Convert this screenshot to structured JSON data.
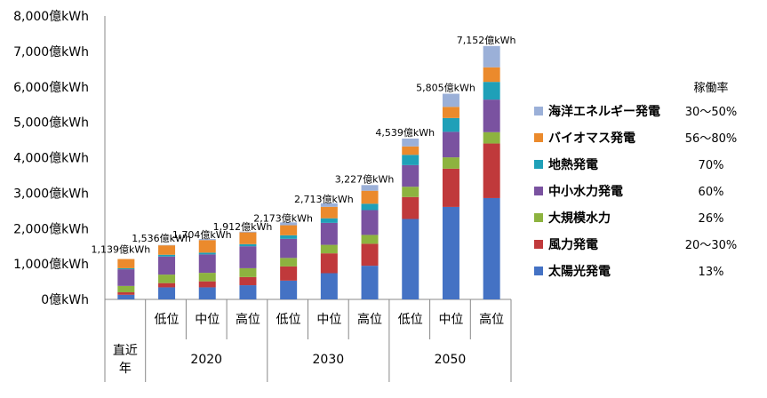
{
  "chart_data": {
    "type": "bar",
    "stacked": true,
    "title": "",
    "xlabel": "",
    "ylabel": "",
    "ylim": [
      0,
      8000
    ],
    "y_ticks": [
      "0億kWh",
      "1,000億kWh",
      "2,000億kWh",
      "3,000億kWh",
      "4,000億kWh",
      "5,000億kWh",
      "6,000億kWh",
      "7,000億kWh",
      "8,000億kWh"
    ],
    "categories": [
      "直近年",
      "2020 低位",
      "2020 中位",
      "2020 高位",
      "2030 低位",
      "2030 中位",
      "2030 高位",
      "2050 低位",
      "2050 中位",
      "2050 高位"
    ],
    "x_labels": [
      "",
      "低位",
      "中位",
      "高位",
      "低位",
      "中位",
      "高位",
      "低位",
      "中位",
      "高位"
    ],
    "groups": [
      {
        "label": "直近\n年",
        "start": 0,
        "end": 0
      },
      {
        "label": "2020",
        "start": 1,
        "end": 3
      },
      {
        "label": "2030",
        "start": 4,
        "end": 6
      },
      {
        "label": "2050",
        "start": 7,
        "end": 9
      }
    ],
    "totals": [
      "1,139億kWh",
      "1,536億kWh",
      "1,704億kWh",
      "1,912億kWh",
      "2,173億kWh",
      "2,713億kWh",
      "3,227億kWh",
      "4,539億kWh",
      "5,805億kWh",
      "7,152億kWh"
    ],
    "total_values": [
      1139,
      1536,
      1704,
      1912,
      2173,
      2713,
      3227,
      4539,
      5805,
      7152
    ],
    "series": [
      {
        "name": "太陽光発電",
        "rate": "13%",
        "color": "#4472C4",
        "values": [
          130,
          340,
          340,
          400,
          530,
          740,
          950,
          2270,
          2610,
          2860
        ]
      },
      {
        "name": "風力発電",
        "rate": "20～30%",
        "color": "#C0393B",
        "values": [
          70,
          120,
          170,
          230,
          400,
          560,
          620,
          620,
          1080,
          1540
        ]
      },
      {
        "name": "大規模水力",
        "rate": "26%",
        "color": "#8DB33F",
        "values": [
          180,
          240,
          240,
          250,
          240,
          240,
          250,
          290,
          320,
          320
        ]
      },
      {
        "name": "中小水力発電",
        "rate": "60%",
        "color": "#7A52A0",
        "values": [
          470,
          510,
          520,
          620,
          540,
          620,
          700,
          610,
          720,
          920
        ]
      },
      {
        "name": "地熱発電",
        "rate": "70%",
        "color": "#1FA0B8",
        "values": [
          30,
          50,
          50,
          60,
          100,
          130,
          180,
          290,
          390,
          500
        ]
      },
      {
        "name": "バイオマス発電",
        "rate": "56～80%",
        "color": "#EB8A2C",
        "values": [
          259,
          266,
          354,
          332,
          283,
          323,
          367,
          239,
          315,
          412
        ]
      },
      {
        "name": "海洋エネルギー発電",
        "rate": "30～50%",
        "color": "#9BB0D8",
        "values": [
          0,
          10,
          30,
          20,
          80,
          100,
          160,
          220,
          370,
          600
        ]
      }
    ],
    "legend_header": "稼働率",
    "legend_position": "right"
  }
}
